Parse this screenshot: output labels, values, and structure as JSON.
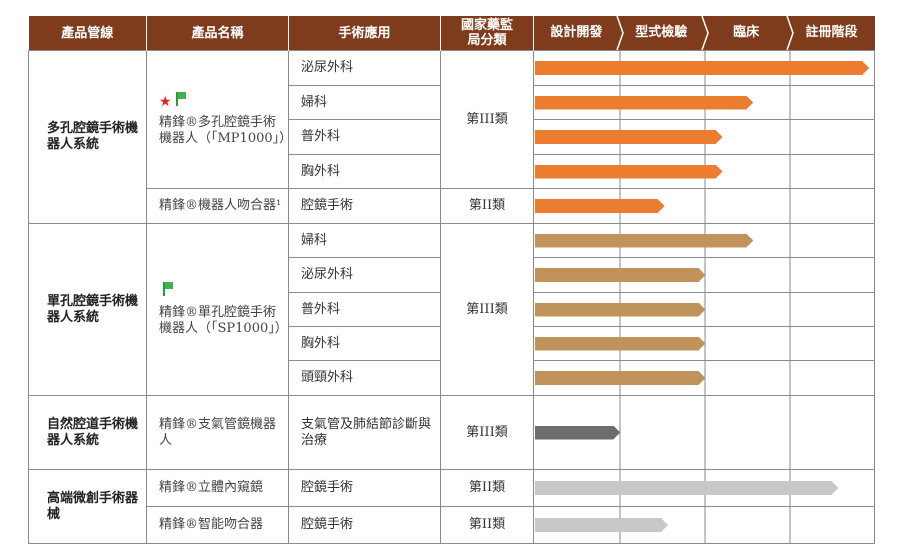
{
  "header": {
    "pipeline": "產品管線",
    "product": "產品名稱",
    "application": "手術應用",
    "classification": "國家藥監局分類",
    "stages": [
      "設計開發",
      "型式檢驗",
      "臨床",
      "註冊階段"
    ]
  },
  "colors": {
    "header": "#7f3c1c",
    "orange": "#ec7c30",
    "tan": "#c0935a",
    "dark": "#6d6d6d",
    "light": "#c8c8c8"
  },
  "groups": [
    {
      "pipeline": "多孔腔鏡手術機器人系統",
      "products": [
        {
          "name": "精鋒®多孔腔鏡手術機器人（「MP1000」）",
          "icons": [
            "red-star",
            "green-flag"
          ],
          "classification": "第III類",
          "rows": [
            {
              "application": "泌尿外科",
              "progress": 0.98
            },
            {
              "application": "婦科",
              "progress": 0.64
            },
            {
              "application": "普外科",
              "progress": 0.55
            },
            {
              "application": "胸外科",
              "progress": 0.55
            }
          ]
        },
        {
          "name": "精鋒®機器人吻合器¹",
          "classification": "第II類",
          "rows": [
            {
              "application": "腔鏡手術",
              "progress": 0.38
            }
          ]
        }
      ]
    },
    {
      "pipeline": "單孔腔鏡手術機器人系統",
      "products": [
        {
          "name": "精鋒®單孔腔鏡手術機器人（「SP1000」）",
          "icons": [
            "green-flag"
          ],
          "classification": "第III類",
          "rows": [
            {
              "application": "婦科",
              "progress": 0.64
            },
            {
              "application": "泌尿外科",
              "progress": 0.5
            },
            {
              "application": "普外科",
              "progress": 0.5
            },
            {
              "application": "胸外科",
              "progress": 0.5
            },
            {
              "application": "頭頸外科",
              "progress": 0.5
            }
          ]
        }
      ]
    },
    {
      "pipeline": "自然腔道手術機器人系統",
      "products": [
        {
          "name": "精鋒®支氣管鏡機器人",
          "classification": "第III類",
          "rows": [
            {
              "application": "支氣管及肺結節診斷與治療",
              "progress": 0.25
            }
          ]
        }
      ]
    },
    {
      "pipeline": "高端微創手術器械",
      "products": [
        {
          "name": "精鋒®立體內窺鏡",
          "classification": "第II類",
          "rows": [
            {
              "application": "腔鏡手術",
              "progress": 0.89
            }
          ]
        },
        {
          "name": "精鋒®智能吻合器",
          "classification": "第II類",
          "rows": [
            {
              "application": "腔鏡手術",
              "progress": 0.39
            }
          ]
        }
      ]
    }
  ]
}
